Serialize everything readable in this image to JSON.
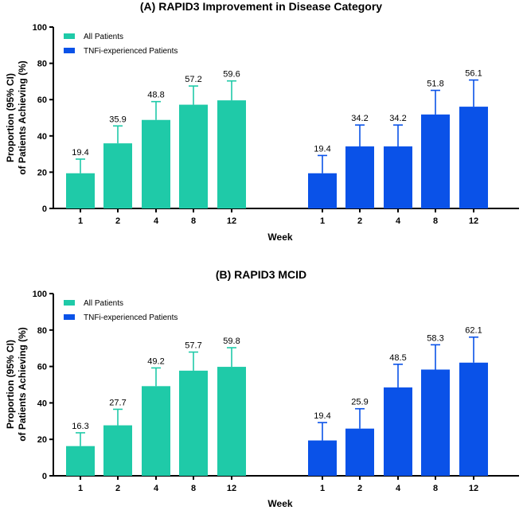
{
  "colors": {
    "all_patients": "#1fcaa8",
    "tnfi_patients": "#0a52e8",
    "axis": "#000000"
  },
  "chart_data": [
    {
      "type": "bar",
      "title": "(A) RAPID3 Improvement in Disease Category",
      "xlabel": "Week",
      "ylabel_line1": "Proportion (95% CI)",
      "ylabel_line2": "of Patients Achieving (%)",
      "ylim": [
        0,
        100
      ],
      "yticks": [
        0,
        20,
        40,
        60,
        80,
        100
      ],
      "legend_position": "top-left",
      "categories": [
        "1",
        "2",
        "4",
        "8",
        "12"
      ],
      "series": [
        {
          "name": "All Patients",
          "color_key": "all_patients",
          "values": [
            19.4,
            35.9,
            48.8,
            57.2,
            59.6
          ],
          "ci_upper": [
            27.2,
            45.5,
            58.9,
            67.5,
            70.3
          ],
          "labels": [
            "19.4",
            "35.9",
            "48.8",
            "57.2",
            "59.6"
          ]
        },
        {
          "name": "TNFi-experienced Patients",
          "color_key": "tnfi_patients",
          "values": [
            19.4,
            34.2,
            34.2,
            51.8,
            56.1
          ],
          "ci_upper": [
            29.2,
            46.0,
            46.0,
            65.1,
            70.8
          ],
          "labels": [
            "19.4",
            "34.2",
            "34.2",
            "51.8",
            "56.1"
          ]
        }
      ]
    },
    {
      "type": "bar",
      "title": "(B) RAPID3 MCID",
      "xlabel": "Week",
      "ylabel_line1": "Proportion (95% CI)",
      "ylabel_line2": "of Patients Achieving (%)",
      "ylim": [
        0,
        100
      ],
      "yticks": [
        0,
        20,
        40,
        60,
        80,
        100
      ],
      "legend_position": "top-left",
      "categories": [
        "1",
        "2",
        "4",
        "8",
        "12"
      ],
      "series": [
        {
          "name": "All Patients",
          "color_key": "all_patients",
          "values": [
            16.3,
            27.7,
            49.2,
            57.7,
            59.8
          ],
          "ci_upper": [
            23.6,
            36.5,
            59.2,
            67.9,
            70.3
          ],
          "labels": [
            "16.3",
            "27.7",
            "49.2",
            "57.7",
            "59.8"
          ]
        },
        {
          "name": "TNFi-experienced Patients",
          "color_key": "tnfi_patients",
          "values": [
            19.4,
            25.9,
            48.5,
            58.3,
            62.1
          ],
          "ci_upper": [
            29.2,
            36.8,
            61.2,
            71.9,
            76.1
          ],
          "labels": [
            "19.4",
            "25.9",
            "48.5",
            "58.3",
            "62.1"
          ]
        }
      ]
    }
  ]
}
